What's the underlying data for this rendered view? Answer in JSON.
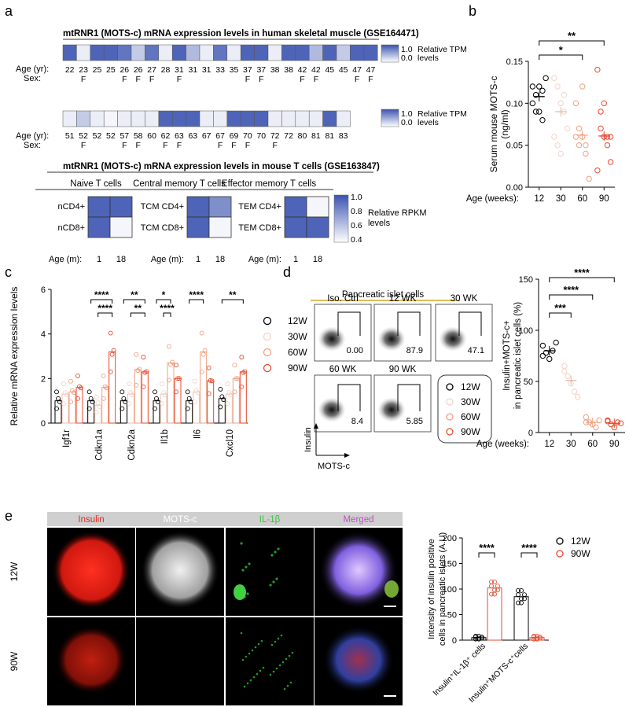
{
  "panel_labels": [
    "a",
    "b",
    "c",
    "d",
    "e"
  ],
  "a": {
    "human_title": "mtRNR1 (MOTS-c) mRNA expression levels in human skeletal muscle (GSE164471)",
    "age_label": "Age (yr):",
    "sex_label": "Sex:",
    "row1_ages": [
      "22",
      "23",
      "25",
      "25",
      "26",
      "26",
      "27",
      "28",
      "31",
      "31",
      "31",
      "33",
      "35",
      "37",
      "37",
      "38",
      "38",
      "42",
      "42",
      "45",
      "45",
      "47",
      "47"
    ],
    "row1_sex": [
      "",
      "F",
      "",
      "",
      "F",
      "F",
      "F",
      "",
      "F",
      "",
      "",
      "",
      "",
      "F",
      "F",
      "",
      "",
      "F",
      "F",
      "",
      "",
      "F",
      "F"
    ],
    "row1_values": [
      0.9,
      0.1,
      0.9,
      0.9,
      0.8,
      0.3,
      0.8,
      0.1,
      0.9,
      0.4,
      0.1,
      0.8,
      0.1,
      0.9,
      0.9,
      0.1,
      0.9,
      0.9,
      0.4,
      0.9,
      0.3,
      0.9,
      0.9
    ],
    "row2_ages": [
      "51",
      "52",
      "52",
      "52",
      "57",
      "58",
      "60",
      "62",
      "63",
      "63",
      "67",
      "67",
      "69",
      "70",
      "70",
      "72",
      "72",
      "80",
      "81",
      "81",
      "83"
    ],
    "row2_sex": [
      "",
      "F",
      "",
      "",
      "F",
      "F",
      "",
      "F",
      "F",
      "",
      "",
      "F",
      "F",
      "F",
      "",
      "F",
      "",
      "",
      "",
      "",
      ""
    ],
    "row2_values": [
      0.1,
      0.3,
      0.1,
      0.05,
      0.1,
      0.1,
      0.1,
      0.9,
      0.9,
      0.9,
      0.1,
      0.1,
      0.9,
      0.9,
      0.9,
      0.1,
      0.1,
      0.1,
      0.1,
      0.9,
      0.1
    ],
    "tpm_legend_max": "1.0",
    "tpm_legend_min": "0.0",
    "tpm_legend_label1": "Relative TPM",
    "tpm_legend_label2": "levels",
    "mouse_title": "mtRNR1 (MOTS-c) mRNA expression levels in mouse T cells (GSE163847)",
    "groups": [
      {
        "title": "Naive T cells",
        "rows": [
          "nCD4+",
          "nCD8+"
        ],
        "values": [
          [
            0.9,
            0.9
          ],
          [
            0.9,
            0.05
          ]
        ]
      },
      {
        "title": "Central memory T cells",
        "rows": [
          "TCM CD4+",
          "TCM CD8+"
        ],
        "values": [
          [
            0.9,
            0.65
          ],
          [
            0.9,
            0.05
          ]
        ]
      },
      {
        "title": "Effector memory T cells",
        "rows": [
          "TEM CD4+",
          "TEM CD8+"
        ],
        "values": [
          [
            0.9,
            0.05
          ],
          [
            0.9,
            0.9
          ]
        ]
      }
    ],
    "age_m_label": "Age (m):",
    "age_m": [
      "1",
      "18"
    ],
    "rpkm_ticks": [
      "1.0",
      "0.8",
      "0.6",
      "0.4"
    ],
    "rpkm_label1": "Relative RPKM",
    "rpkm_label2": "levels"
  },
  "chart_data": [
    {
      "panel": "b",
      "type": "scatter",
      "ylabel": "Serum mouse MOTS-c",
      "ylabel2": "(ng/ml)",
      "xlabel": "Age (weeks):",
      "categories": [
        "12",
        "30",
        "60",
        "90"
      ],
      "yticks": [
        "0.00",
        "0.05",
        "0.10",
        "0.15"
      ],
      "ylim": [
        0,
        0.15
      ],
      "means": [
        0.108,
        0.09,
        0.062,
        0.061
      ],
      "points": [
        [
          0.12,
          0.11,
          0.09,
          0.115,
          0.13,
          0.1,
          0.09,
          0.12,
          0.08
        ],
        [
          0.13,
          0.12,
          0.1,
          0.09,
          0.07,
          0.06,
          0.05,
          0.04,
          0.11
        ],
        [
          0.1,
          0.07,
          0.06,
          0.05,
          0.01,
          0.06,
          0.05,
          0.12,
          0.04
        ],
        [
          0.14,
          0.07,
          0.06,
          0.05,
          0.03,
          0.02,
          0.09,
          0.1,
          0.06,
          0.06
        ]
      ],
      "significance": [
        {
          "from": 0,
          "to": 2,
          "label": "*"
        },
        {
          "from": 0,
          "to": 3,
          "label": "**"
        }
      ]
    },
    {
      "panel": "c",
      "type": "bar",
      "ylabel": "Relative mRNA expression levels",
      "categories": [
        "Igf1r",
        "Cdkn1a",
        "Cdkn2a",
        "Il1b",
        "Il6",
        "Cxcl10"
      ],
      "yticks": [
        "0",
        "2",
        "4",
        "6"
      ],
      "ylim": [
        0,
        6
      ],
      "series": [
        {
          "name": "12W",
          "values": [
            1.0,
            1.0,
            1.0,
            1.0,
            1.0,
            1.1
          ]
        },
        {
          "name": "30W",
          "values": [
            1.3,
            0.8,
            1.3,
            1.3,
            1.4,
            1.3
          ]
        },
        {
          "name": "60W",
          "values": [
            1.4,
            1.6,
            2.4,
            2.7,
            3.2,
            2.0
          ]
        },
        {
          "name": "90W",
          "values": [
            1.6,
            3.2,
            2.3,
            2.0,
            1.9,
            2.3
          ]
        }
      ],
      "significance": [
        {
          "cat": 1,
          "from": 0,
          "to": 3,
          "label": "****"
        },
        {
          "cat": 1,
          "from": 1,
          "to": 3,
          "label": "****"
        },
        {
          "cat": 2,
          "from": 0,
          "to": 3,
          "label": "**"
        },
        {
          "cat": 2,
          "from": 1,
          "to": 3,
          "label": "**"
        },
        {
          "cat": 3,
          "from": 0,
          "to": 2,
          "label": "*"
        },
        {
          "cat": 3,
          "from": 1,
          "to": 2,
          "label": "****"
        },
        {
          "cat": 4,
          "from": 0,
          "to": 2,
          "label": "****"
        },
        {
          "cat": 5,
          "from": 0,
          "to": 3,
          "label": "**"
        }
      ]
    },
    {
      "panel": "d",
      "type": "scatter",
      "ylabel": "Insulin+MOTS-c+",
      "ylabel2": "in pancreatic islet cells (%)",
      "xlabel": "Age (weeks):",
      "categories": [
        "12",
        "30",
        "60",
        "90"
      ],
      "yticks": [
        "0",
        "50",
        "100",
        "150"
      ],
      "ylim": [
        0,
        150
      ],
      "means": [
        80,
        51,
        10,
        9
      ],
      "points": [
        [
          85,
          78,
          72,
          80,
          88,
          75
        ],
        [
          65,
          55,
          48,
          40,
          35,
          60
        ],
        [
          15,
          10,
          8,
          5,
          12,
          10
        ],
        [
          12,
          8,
          5,
          10,
          9,
          11
        ]
      ],
      "significance": [
        {
          "from": 0,
          "to": 1,
          "label": "***"
        },
        {
          "from": 0,
          "to": 2,
          "label": "****"
        },
        {
          "from": 0,
          "to": 3,
          "label": "****"
        }
      ]
    },
    {
      "panel": "e",
      "type": "bar",
      "ylabel": "Intensity of insulin positive",
      "ylabel2": "cells in pancreatic islets (A.U)",
      "categories": [
        "Insulin⁺IL-1β⁺ cells",
        "Insulin⁺MOTS-c⁺cells"
      ],
      "yticks": [
        "0",
        "50",
        "100",
        "150",
        "200"
      ],
      "ylim": [
        0,
        200
      ],
      "series": [
        {
          "name": "12W",
          "values": [
            5,
            85
          ]
        },
        {
          "name": "90W",
          "values": [
            102,
            5
          ]
        }
      ],
      "significance": [
        {
          "cat": 0,
          "label": "****"
        },
        {
          "cat": 1,
          "label": "****"
        }
      ]
    }
  ],
  "legend_weeks": [
    "12W",
    "30W",
    "60W",
    "90W"
  ],
  "legend_e": [
    "12W",
    "90W"
  ],
  "d": {
    "title": "Pancreatic islet cells",
    "facs_labels": [
      "Iso. Ctrl",
      "12 WK",
      "30 WK",
      "60 WK",
      "90 WK"
    ],
    "facs_values": [
      "0.00",
      "87.9",
      "47.1",
      "8.4",
      "5.85"
    ],
    "y_axis": "Insulin",
    "x_axis": "MOTS-c"
  },
  "e": {
    "channels": [
      "Insulin",
      "MOTS-c",
      "IL-1β",
      "Merged"
    ],
    "rows": [
      "12W",
      "90W"
    ]
  },
  "colors": {
    "c12": "#000000",
    "c30": "#f3d3c8",
    "c60": "#f0a080",
    "c90": "#e8492e",
    "heat": "#3a53b0"
  }
}
